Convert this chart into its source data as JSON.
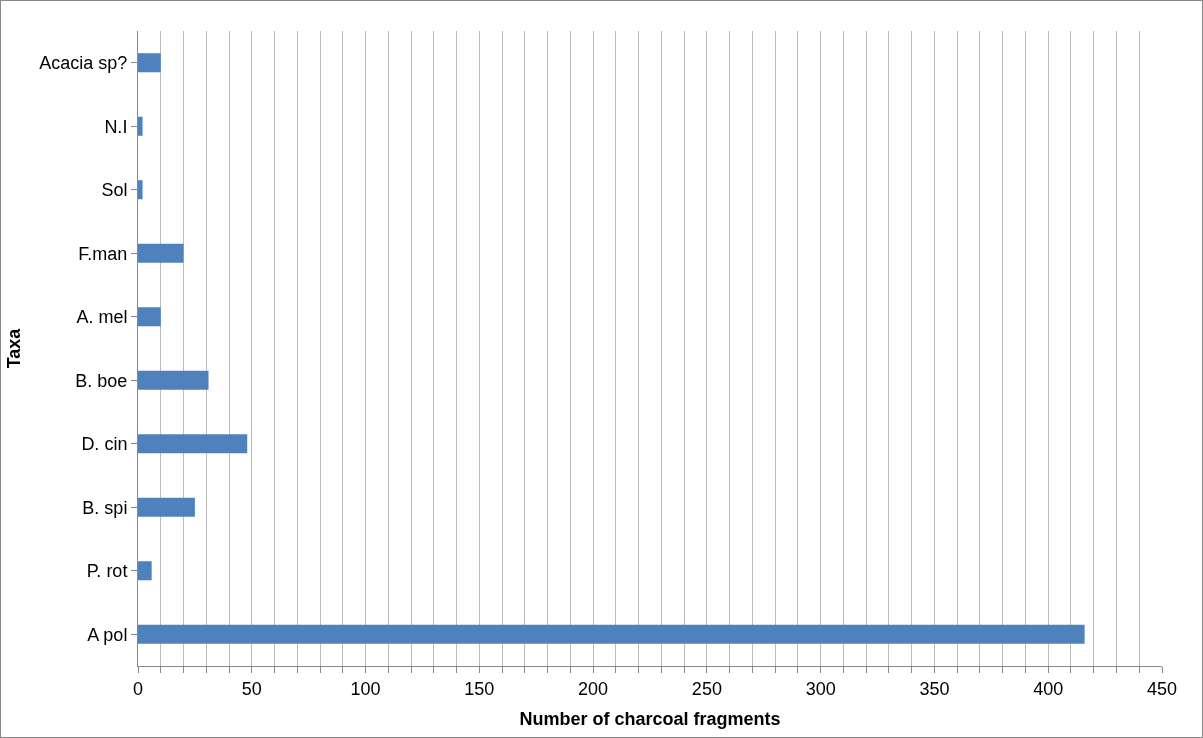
{
  "chart_data": {
    "type": "bar",
    "orientation": "horizontal",
    "xlabel": "Number of charcoal fragments",
    "ylabel": "Taxa",
    "categories": [
      "Acacia sp?",
      "N.I",
      "Sol",
      "F.man",
      "A. mel",
      "B. boe",
      "D. cin",
      "B. spi",
      "P. rot",
      "A pol"
    ],
    "values": [
      10,
      2,
      2,
      20,
      10,
      31,
      48,
      25,
      6,
      416
    ],
    "color": "#4f81bd",
    "xlim": [
      0,
      450
    ],
    "xticks": [
      0,
      {
        "value": 10,
        "label": null
      },
      {
        "value": 20,
        "label": null
      },
      {
        "value": 30,
        "label": null
      },
      {
        "value": 40,
        "label": null
      },
      50,
      {
        "value": 60,
        "label": null
      },
      {
        "value": 70,
        "label": null
      },
      {
        "value": 80,
        "label": null
      },
      {
        "value": 90,
        "label": null
      },
      100,
      {
        "value": 110,
        "label": null
      },
      {
        "value": 120,
        "label": null
      },
      {
        "value": 130,
        "label": null
      },
      {
        "value": 140,
        "label": null
      },
      150,
      {
        "value": 160,
        "label": null
      },
      {
        "value": 170,
        "label": null
      },
      {
        "value": 180,
        "label": null
      },
      {
        "value": 190,
        "label": null
      },
      200,
      {
        "value": 210,
        "label": null
      },
      {
        "value": 220,
        "label": null
      },
      {
        "value": 230,
        "label": null
      },
      {
        "value": 240,
        "label": null
      },
      250,
      {
        "value": 260,
        "label": null
      },
      {
        "value": 270,
        "label": null
      },
      {
        "value": 280,
        "label": null
      },
      {
        "value": 290,
        "label": null
      },
      300,
      {
        "value": 310,
        "label": null
      },
      {
        "value": 320,
        "label": null
      },
      {
        "value": 330,
        "label": null
      },
      {
        "value": 340,
        "label": null
      },
      350,
      {
        "value": 360,
        "label": null
      },
      {
        "value": 370,
        "label": null
      },
      {
        "value": 380,
        "label": null
      },
      {
        "value": 390,
        "label": null
      },
      400,
      {
        "value": 410,
        "label": null
      },
      {
        "value": 420,
        "label": null
      },
      {
        "value": 430,
        "label": null
      },
      {
        "value": 440,
        "label": null
      },
      450
    ],
    "grid": "x"
  }
}
